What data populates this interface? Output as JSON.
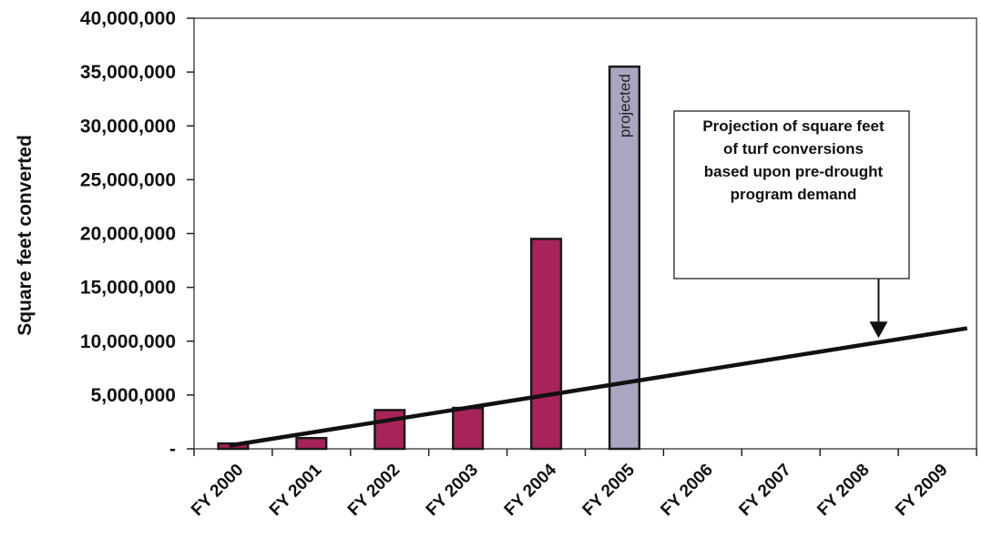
{
  "chart_data": {
    "type": "bar",
    "categories": [
      "FY 2000",
      "FY 2001",
      "FY 2002",
      "FY 2003",
      "FY 2004",
      "FY 2005",
      "FY 2006",
      "FY 2007",
      "FY 2008",
      "FY 2009"
    ],
    "values": [
      500000,
      1000000,
      3600000,
      3800000,
      19500000,
      35500000,
      null,
      null,
      null,
      null
    ],
    "projected_index": 5,
    "projected_label": "projected",
    "trend_line": {
      "start": {
        "category": "FY 2000",
        "value": 300000
      },
      "end": {
        "category": "FY 2009",
        "value": 11200000
      }
    },
    "ylabel": "Square feet converted",
    "ylim": [
      0,
      40000000
    ],
    "yticks": [
      0,
      5000000,
      10000000,
      15000000,
      20000000,
      25000000,
      30000000,
      35000000,
      40000000
    ],
    "ytick_labels": [
      "-",
      "5,000,000",
      "10,000,000",
      "15,000,000",
      "20,000,000",
      "25,000,000",
      "30,000,000",
      "35,000,000",
      "40,000,000"
    ],
    "annotation": {
      "lines": [
        "Projection of square feet",
        "of turf conversions",
        "based upon pre-drought",
        "program demand"
      ],
      "points_to": {
        "category": "FY 2009",
        "value": 10300000
      }
    },
    "colors": {
      "bar": "#a8235a",
      "projected_bar": "#aaa6c2",
      "trend": "#111111"
    },
    "grid": false
  }
}
